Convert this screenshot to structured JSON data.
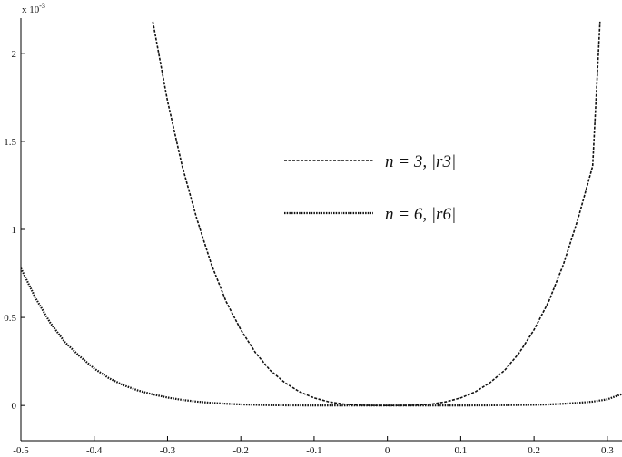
{
  "chart_data": {
    "type": "line",
    "title": "",
    "xlabel": "",
    "ylabel": "",
    "multiplier_label": "x 10",
    "multiplier_exponent": "-3",
    "xlim": [
      -0.5,
      0.32
    ],
    "ylim": [
      -0.2,
      2.2
    ],
    "xticks": [
      -0.5,
      -0.4,
      -0.3,
      -0.2,
      -0.1,
      0,
      0.1,
      0.2,
      0.3
    ],
    "xtick_labels": [
      "-0.5",
      "-0.4",
      "-0.3",
      "-0.2",
      "-0.1",
      "0",
      "0.1",
      "0.2",
      "0.3"
    ],
    "yticks": [
      0,
      0.5,
      1,
      1.5,
      2
    ],
    "ytick_labels": [
      "0",
      "0.5",
      "1",
      "1.5",
      "2"
    ],
    "grid": false,
    "legend_position": "center",
    "series": [
      {
        "name": "n = 3, |r3|",
        "color": "#111111",
        "style": "dashed",
        "x": [
          -0.32,
          -0.3,
          -0.28,
          -0.26,
          -0.24,
          -0.22,
          -0.2,
          -0.18,
          -0.16,
          -0.14,
          -0.12,
          -0.1,
          -0.08,
          -0.06,
          -0.04,
          -0.02,
          0,
          0.02,
          0.04,
          0.06,
          0.08,
          0.1,
          0.12,
          0.14,
          0.16,
          0.18,
          0.2,
          0.22,
          0.24,
          0.26,
          0.28,
          0.29
        ],
        "y": [
          2.18,
          1.73,
          1.36,
          1.06,
          0.8,
          0.59,
          0.43,
          0.3,
          0.2,
          0.13,
          0.078,
          0.043,
          0.021,
          0.008,
          0.002,
          0.0003,
          0,
          0.0003,
          0.002,
          0.008,
          0.021,
          0.043,
          0.078,
          0.13,
          0.2,
          0.3,
          0.43,
          0.59,
          0.8,
          1.06,
          1.36,
          2.18
        ]
      },
      {
        "name": "n = 6, |r6|",
        "color": "#111111",
        "style": "dotted",
        "x": [
          -0.5,
          -0.48,
          -0.46,
          -0.44,
          -0.42,
          -0.4,
          -0.38,
          -0.36,
          -0.34,
          -0.32,
          -0.3,
          -0.28,
          -0.26,
          -0.24,
          -0.22,
          -0.2,
          -0.18,
          -0.16,
          -0.14,
          -0.12,
          -0.1,
          -0.08,
          -0.06,
          -0.04,
          -0.02,
          0,
          0.02,
          0.04,
          0.06,
          0.08,
          0.1,
          0.12,
          0.14,
          0.16,
          0.18,
          0.2,
          0.22,
          0.24,
          0.26,
          0.28,
          0.3,
          0.32
        ],
        "y": [
          0.78,
          0.61,
          0.47,
          0.36,
          0.28,
          0.21,
          0.155,
          0.115,
          0.085,
          0.063,
          0.045,
          0.032,
          0.022,
          0.015,
          0.01,
          0.006,
          0.004,
          0.002,
          0.001,
          0.0005,
          0.0002,
          0.0001,
          0,
          0,
          0,
          0,
          0,
          0,
          0,
          0.0001,
          0.0002,
          0.0005,
          0.001,
          0.002,
          0.003,
          0.004,
          0.006,
          0.01,
          0.015,
          0.022,
          0.035,
          0.065
        ]
      }
    ],
    "legend": [
      {
        "label": "n = 3, |r3|",
        "style": "dashed"
      },
      {
        "label": "n = 6, |r6|",
        "style": "dotted"
      }
    ]
  }
}
